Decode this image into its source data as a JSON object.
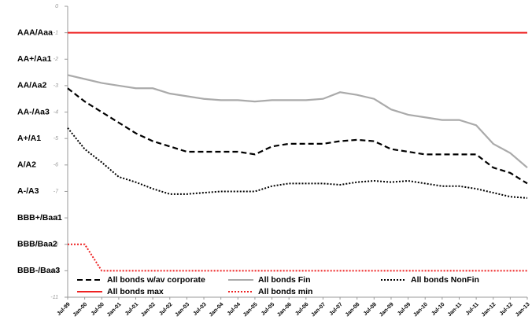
{
  "chart_data": {
    "type": "line",
    "categories": [
      "Jul-99",
      "Jan-00",
      "Jul-00",
      "Jan-01",
      "Jul-01",
      "Jan-02",
      "Jul-02",
      "Jan-03",
      "Jul-03",
      "Jan-04",
      "Jul-04",
      "Jan-05",
      "Jul-05",
      "Jan-06",
      "Jul-06",
      "Jan-07",
      "Jul-07",
      "Jan-08",
      "Jul-08",
      "Jan-09",
      "Jul-09",
      "Jan-10",
      "Jul-10",
      "Jan-11",
      "Jul-11",
      "Jan-12",
      "Jul-12",
      "Jan-13"
    ],
    "series": [
      {
        "name": "All bonds w/av corporate",
        "color": "#000000",
        "style": "dashed",
        "values": [
          -3.1,
          -3.6,
          -4.0,
          -4.4,
          -4.8,
          -5.1,
          -5.3,
          -5.5,
          -5.5,
          -5.5,
          -5.5,
          -5.6,
          -5.3,
          -5.2,
          -5.2,
          -5.2,
          -5.1,
          -5.05,
          -5.1,
          -5.4,
          -5.5,
          -5.6,
          -5.6,
          -5.6,
          -5.6,
          -6.1,
          -6.3,
          -6.7
        ]
      },
      {
        "name": "All bonds Fin",
        "color": "#aaaaaa",
        "style": "solid",
        "values": [
          -2.6,
          -2.75,
          -2.9,
          -3.0,
          -3.1,
          -3.1,
          -3.3,
          -3.4,
          -3.5,
          -3.55,
          -3.55,
          -3.6,
          -3.55,
          -3.55,
          -3.55,
          -3.5,
          -3.25,
          -3.35,
          -3.5,
          -3.9,
          -4.1,
          -4.2,
          -4.3,
          -4.3,
          -4.5,
          -5.2,
          -5.55,
          -6.1
        ]
      },
      {
        "name": "All bonds NonFin",
        "color": "#000000",
        "style": "dotted",
        "values": [
          -4.6,
          -5.4,
          -5.9,
          -6.45,
          -6.65,
          -6.9,
          -7.1,
          -7.1,
          -7.05,
          -7.0,
          -7.0,
          -7.0,
          -6.8,
          -6.7,
          -6.7,
          -6.7,
          -6.75,
          -6.65,
          -6.6,
          -6.65,
          -6.6,
          -6.7,
          -6.8,
          -6.8,
          -6.9,
          -7.05,
          -7.2,
          -7.25
        ]
      },
      {
        "name": "All bonds max",
        "color": "#ee2222",
        "style": "solid",
        "values": [
          -1,
          -1,
          -1,
          -1,
          -1,
          -1,
          -1,
          -1,
          -1,
          -1,
          -1,
          -1,
          -1,
          -1,
          -1,
          -1,
          -1,
          -1,
          -1,
          -1,
          -1,
          -1,
          -1,
          -1,
          -1,
          -1,
          -1,
          -1
        ]
      },
      {
        "name": "All bonds min",
        "color": "#ee2222",
        "style": "dotted",
        "values": [
          -9,
          -9,
          -10,
          -10,
          -10,
          -10,
          -10,
          -10,
          -10,
          -10,
          -10,
          -10,
          -10,
          -10,
          -10,
          -10,
          -10,
          -10,
          -10,
          -10,
          -10,
          -10,
          -10,
          -10,
          -10,
          -10,
          -10,
          -10
        ]
      }
    ],
    "ylim": [
      -11,
      0
    ],
    "yticks": [
      0,
      -1,
      -2,
      -3,
      -4,
      -5,
      -6,
      -7,
      -8,
      -9,
      -10,
      -11
    ],
    "rating_labels": [
      {
        "value": -1,
        "label": "AAA/Aaa"
      },
      {
        "value": -2,
        "label": "AA+/Aa1"
      },
      {
        "value": -3,
        "label": "AA/Aa2"
      },
      {
        "value": -4,
        "label": "AA-/Aa3"
      },
      {
        "value": -5,
        "label": "A+/A1"
      },
      {
        "value": -6,
        "label": "A/A2"
      },
      {
        "value": -7,
        "label": "A-/A3"
      },
      {
        "value": -8,
        "label": "BBB+/Baa1"
      },
      {
        "value": -9,
        "label": "BBB/Baa2"
      },
      {
        "value": -10,
        "label": "BBB-/Baa3"
      }
    ],
    "legend": "bottom-inside"
  }
}
